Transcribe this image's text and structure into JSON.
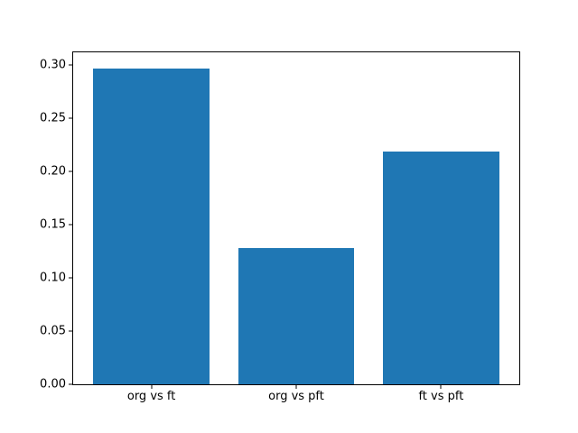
{
  "figure": {
    "background": "#ffffff",
    "text_color": "#000000"
  },
  "chart_data": {
    "type": "bar",
    "categories": [
      "org vs ft",
      "org vs pft",
      "ft vs pft"
    ],
    "values": [
      0.297,
      0.128,
      0.219
    ],
    "title": "",
    "xlabel": "",
    "ylabel": "",
    "ylim": [
      0,
      0.312
    ],
    "xlim": [
      -0.54,
      2.54
    ],
    "yticks": [
      0.0,
      0.05,
      0.1,
      0.15,
      0.2,
      0.25,
      0.3
    ],
    "ytick_labels": [
      "0.00",
      "0.05",
      "0.10",
      "0.15",
      "0.20",
      "0.25",
      "0.30"
    ],
    "bar_color": "#1f77b4",
    "bar_width": 0.8,
    "grid": false,
    "legend": false
  }
}
